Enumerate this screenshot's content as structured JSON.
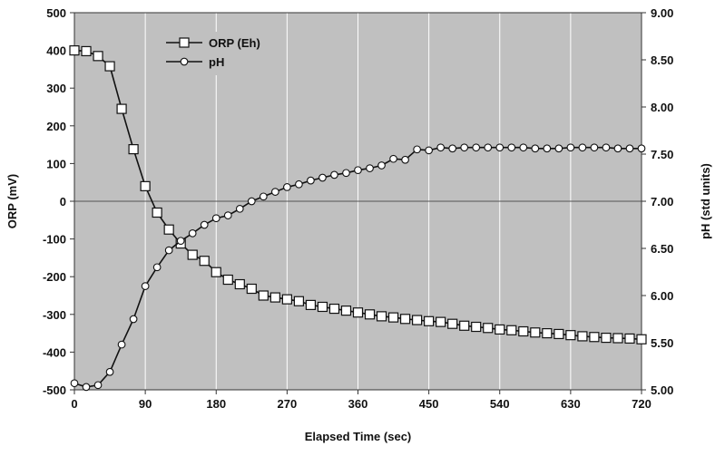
{
  "chart_data": {
    "type": "line",
    "xlabel": "Elapsed Time (sec)",
    "ylabel": "ORP (mV)",
    "y2label": "pH (std units)",
    "xlim": [
      0,
      720
    ],
    "ylim": [
      -500,
      500
    ],
    "y2lim": [
      5.0,
      9.0
    ],
    "xticks": [
      "0",
      "90",
      "180",
      "270",
      "360",
      "450",
      "540",
      "630",
      "720"
    ],
    "yticks": [
      "-500",
      "-400",
      "-300",
      "-200",
      "-100",
      "0",
      "100",
      "200",
      "300",
      "400",
      "500"
    ],
    "y2ticks": [
      "5.00",
      "5.50",
      "6.00",
      "6.50",
      "7.00",
      "7.50",
      "8.00",
      "8.50",
      "9.00"
    ],
    "grid": "vertical lines at x ticks, horizontal line at ORP 0",
    "legend_position": "top-left",
    "plot_background": "#c0c0c0",
    "series": [
      {
        "name": "ORP (Eh)",
        "axis": "left",
        "marker": "square",
        "x": [
          0,
          15,
          30,
          45,
          60,
          75,
          90,
          105,
          120,
          135,
          150,
          165,
          180,
          195,
          210,
          225,
          240,
          255,
          270,
          285,
          300,
          315,
          330,
          345,
          360,
          375,
          390,
          405,
          420,
          435,
          450,
          465,
          480,
          495,
          510,
          525,
          540,
          555,
          570,
          585,
          600,
          615,
          630,
          645,
          660,
          675,
          690,
          705,
          720
        ],
        "values": [
          400,
          398,
          385,
          358,
          245,
          138,
          40,
          -30,
          -75,
          -112,
          -142,
          -158,
          -188,
          -208,
          -220,
          -232,
          -250,
          -255,
          -260,
          -265,
          -275,
          -280,
          -285,
          -290,
          -295,
          -300,
          -305,
          -308,
          -312,
          -315,
          -318,
          -320,
          -325,
          -330,
          -333,
          -336,
          -340,
          -342,
          -345,
          -348,
          -350,
          -352,
          -355,
          -358,
          -360,
          -362,
          -363,
          -364,
          -366
        ]
      },
      {
        "name": "pH",
        "axis": "right",
        "marker": "circle",
        "x": [
          0,
          15,
          30,
          45,
          60,
          75,
          90,
          105,
          120,
          135,
          150,
          165,
          180,
          195,
          210,
          225,
          240,
          255,
          270,
          285,
          300,
          315,
          330,
          345,
          360,
          375,
          390,
          405,
          420,
          435,
          450,
          465,
          480,
          495,
          510,
          525,
          540,
          555,
          570,
          585,
          600,
          615,
          630,
          645,
          660,
          675,
          690,
          705,
          720
        ],
        "values": [
          5.07,
          5.03,
          5.05,
          5.19,
          5.48,
          5.75,
          6.1,
          6.3,
          6.48,
          6.58,
          6.66,
          6.75,
          6.82,
          6.85,
          6.92,
          7.0,
          7.05,
          7.1,
          7.15,
          7.18,
          7.22,
          7.25,
          7.28,
          7.3,
          7.33,
          7.35,
          7.38,
          7.45,
          7.44,
          7.55,
          7.54,
          7.57,
          7.56,
          7.57,
          7.57,
          7.57,
          7.57,
          7.57,
          7.57,
          7.56,
          7.56,
          7.56,
          7.57,
          7.57,
          7.57,
          7.57,
          7.56,
          7.56,
          7.56
        ]
      }
    ]
  }
}
